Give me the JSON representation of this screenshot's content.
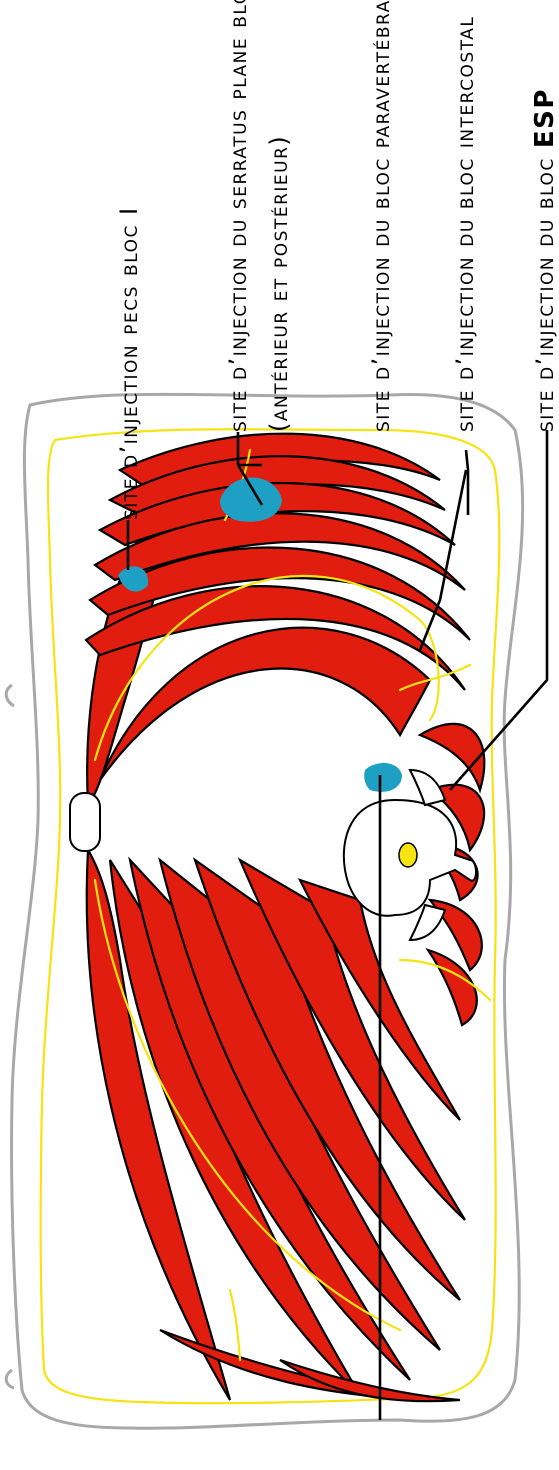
{
  "labels": {
    "pecs": "site d’injection pecs bloc I",
    "serratus_line1": "site d’injection du serratus plane bloc",
    "serratus_line2": "(antérieur et postérieur)",
    "paravertebral": "site d’injection du bloc paravertébral",
    "intercostal": "site d’injection du bloc intercostal",
    "esp_prefix": "site d’injection du bloc ",
    "esp_acronym": "ESP"
  },
  "colors": {
    "muscle": "#e11d0f",
    "nerve": "#f5e313",
    "injection_site": "#1e9fc4",
    "skin_outline": "#a8a8a8"
  }
}
